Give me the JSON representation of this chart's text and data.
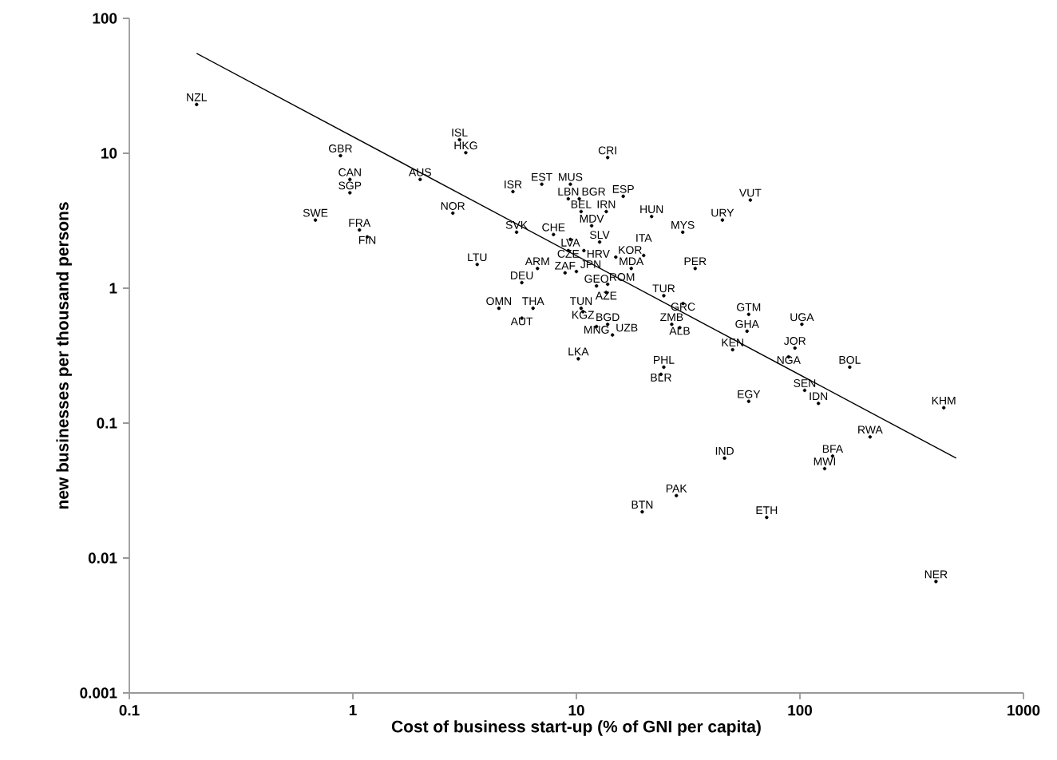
{
  "chart_data": {
    "type": "scatter",
    "xlabel": "Cost of business start-up (% of GNI per capita)",
    "ylabel": "new businesses per thousand persons",
    "log": "xy",
    "xlim": [
      0.1,
      1000
    ],
    "ylim": [
      0.001,
      100
    ],
    "xticks": [
      0.1,
      1,
      10,
      100,
      1000
    ],
    "yticks": [
      0.001,
      0.01,
      0.1,
      1,
      10,
      100
    ],
    "series": [
      {
        "type": "line",
        "color": "#000000",
        "x": [
          0.2,
          500
        ],
        "values": [
          55,
          0.055
        ]
      },
      {
        "color": "#000000",
        "marker": "circle",
        "value_labels": [
          "NZL",
          "GBR",
          "CAN",
          "SGP",
          "SWE",
          "FRA",
          "FIN",
          "AUS",
          "ISL",
          "HKG",
          "NOR",
          "ISR",
          "SVK",
          "LTU",
          "DEU",
          "ARM",
          "OMN",
          "THA",
          "AUT",
          "CRI",
          "EST",
          "MUS",
          "LBN",
          "BGR",
          "ESP",
          "BEL",
          "IRN",
          "HUN",
          "MYS",
          "URY",
          "VUT",
          "MDV",
          "CHE",
          "LVA",
          "SLV",
          "CZE",
          "HRV",
          "KOR",
          "ITA",
          "MDA",
          "PER",
          "ZAF",
          "JPN",
          "GEO",
          "ROM",
          "AZE",
          "TUR",
          "GRC",
          "TUN",
          "KGZ",
          "MNG",
          "BGD",
          "UZB",
          "ZMB",
          "ALB",
          "LKA",
          "PHL",
          "BLR",
          "GTM",
          "GHA",
          "UGA",
          "KEN",
          "JOR",
          "NGA",
          "BOL",
          "SEN",
          "IDN",
          "EGY",
          "KHM",
          "RWA",
          "IND",
          "BFA",
          "MWI",
          "PAK",
          "BTN",
          "ETH",
          "NER"
        ],
        "x": [
          0.2,
          0.88,
          0.97,
          0.97,
          0.68,
          1.07,
          1.16,
          2.0,
          3.0,
          3.2,
          2.8,
          5.2,
          5.4,
          3.6,
          5.7,
          6.7,
          4.5,
          6.4,
          5.7,
          13.8,
          7.0,
          9.4,
          9.2,
          10.3,
          16.2,
          10.5,
          13.6,
          21.7,
          29.9,
          45,
          60,
          11.7,
          7.9,
          9.4,
          12.7,
          9.2,
          10.8,
          15,
          20,
          17.6,
          34,
          8.9,
          10,
          12.3,
          13.8,
          13.6,
          24.6,
          30,
          10.5,
          10.7,
          12.3,
          13.8,
          14.5,
          26.7,
          29,
          10.2,
          24.6,
          23.9,
          59,
          58,
          102,
          50,
          95,
          89,
          167,
          105,
          121,
          59,
          440,
          206,
          46,
          140,
          129,
          28,
          19.7,
          71,
          406
        ],
        "values": [
          23,
          9.6,
          6.4,
          5.1,
          3.2,
          2.7,
          2.4,
          6.4,
          12.6,
          10.1,
          3.6,
          5.2,
          2.6,
          1.5,
          1.1,
          1.4,
          0.71,
          0.71,
          0.6,
          9.3,
          5.9,
          5.9,
          4.6,
          4.6,
          4.8,
          3.7,
          3.7,
          3.4,
          2.6,
          3.2,
          4.5,
          2.9,
          2.5,
          2.3,
          2.2,
          1.9,
          1.9,
          1.7,
          1.75,
          1.4,
          1.4,
          1.3,
          1.33,
          1.04,
          1.07,
          0.93,
          0.88,
          0.77,
          0.71,
          0.67,
          0.52,
          0.54,
          0.45,
          0.54,
          0.51,
          0.3,
          0.26,
          0.23,
          0.64,
          0.48,
          0.54,
          0.35,
          0.36,
          0.31,
          0.26,
          0.175,
          0.14,
          0.145,
          0.13,
          0.079,
          0.055,
          0.057,
          0.046,
          0.029,
          0.022,
          0.02,
          0.0067
        ]
      }
    ]
  }
}
